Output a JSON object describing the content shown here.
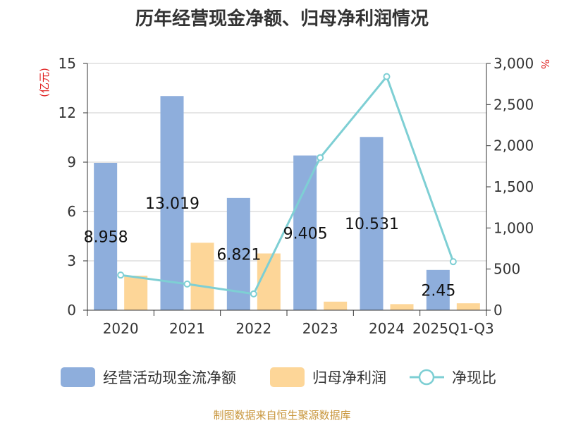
{
  "title": "历年经营现金净额、归母净利润情况",
  "source": "制图数据来自恒生聚源数据库",
  "legend": {
    "cash_flow": "经营活动现金流净额",
    "net_profit": "归母净利润",
    "ratio": "净现比"
  },
  "chart_data": {
    "type": "bar",
    "title": "历年经营现金净额、归母净利润情况",
    "categories": [
      "2020",
      "2021",
      "2022",
      "2023",
      "2024",
      "2025Q1-Q3"
    ],
    "ylabel_left": "(亿元)",
    "ylabel_right": "%",
    "ylim_left": [
      0,
      15
    ],
    "ylim_right": [
      0,
      3000
    ],
    "yticks_left": [
      "0",
      "3",
      "6",
      "9",
      "12",
      "15"
    ],
    "yticks_right": [
      "0",
      "500",
      "1,000",
      "1,500",
      "2,000",
      "2,500",
      "3,000"
    ],
    "grid": true,
    "legend_position": "bottom",
    "series": [
      {
        "name": "经营活动现金流净额",
        "type": "bar",
        "axis": "left",
        "color": "#8eaedc",
        "values": [
          8.958,
          13.019,
          6.821,
          9.405,
          10.531,
          2.45
        ],
        "labels": [
          "8.958",
          "13.019",
          "6.821",
          "9.405",
          "10.531",
          "2.45"
        ]
      },
      {
        "name": "归母净利润",
        "type": "bar",
        "axis": "left",
        "color": "#fdd698",
        "values": [
          2.1,
          4.1,
          3.45,
          0.52,
          0.37,
          0.42
        ]
      },
      {
        "name": "净现比",
        "type": "line",
        "axis": "right",
        "color": "#7ecfd4",
        "values": [
          427,
          318,
          198,
          1855,
          2840,
          590
        ]
      }
    ]
  }
}
